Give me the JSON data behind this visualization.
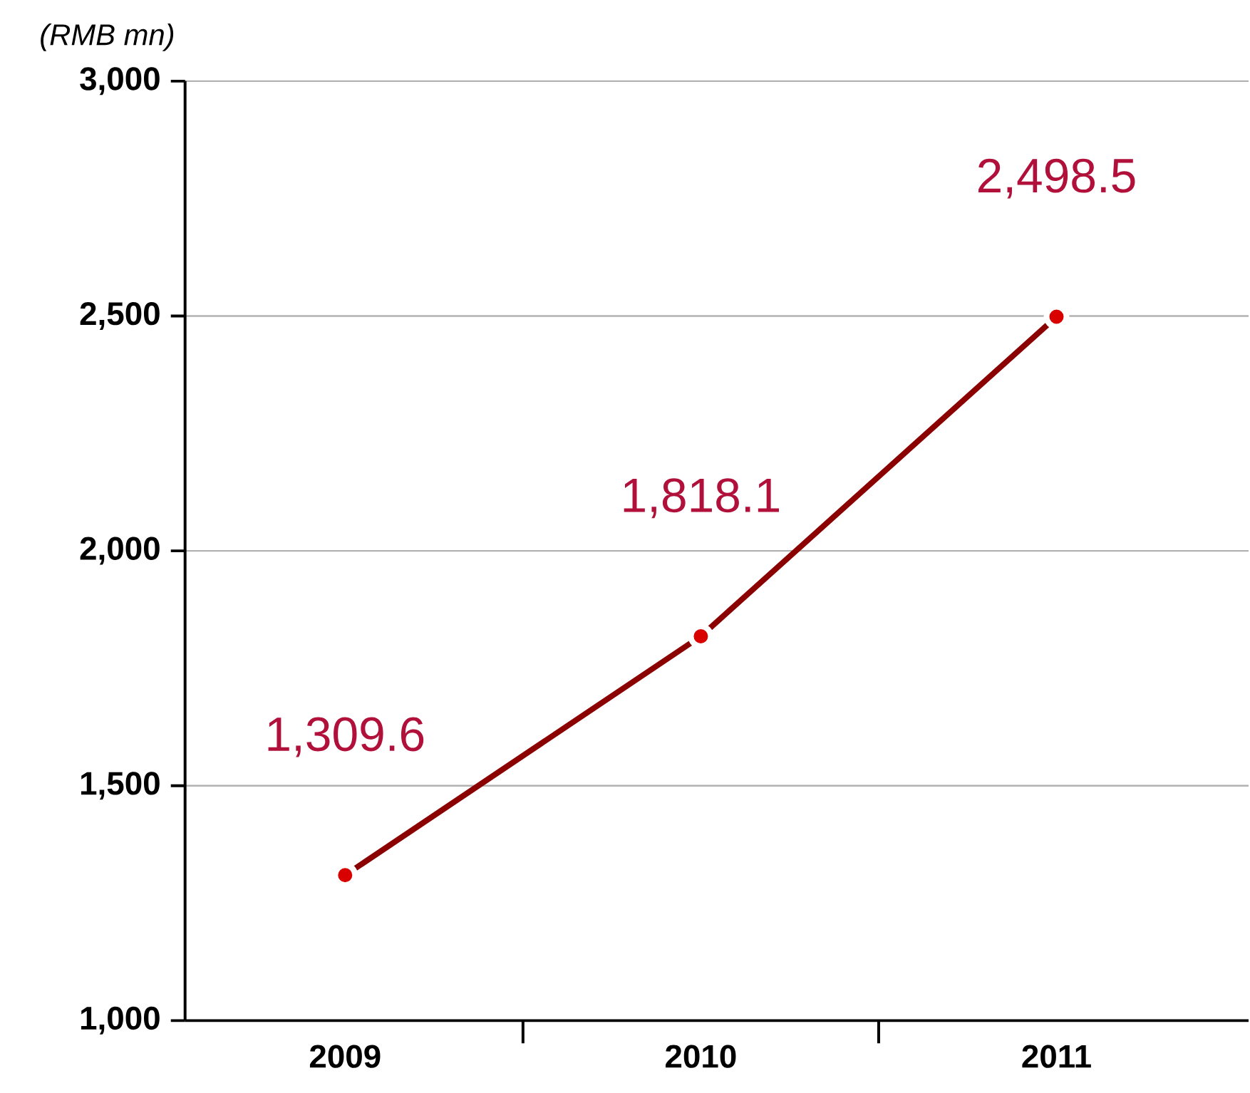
{
  "chart_data": {
    "type": "line",
    "ylabel": "*(RMB mn)*",
    "categories": [
      "2009",
      "2010",
      "2011"
    ],
    "series": [
      {
        "color": "#8b0000",
        "values": [
          1309.6,
          1818.1,
          2498.5
        ],
        "value_labels": [
          "1,309.6",
          "1,818.1",
          "2,498.5"
        ]
      }
    ],
    "ylim": [
      1000,
      3000
    ],
    "yticks": [
      {
        "value": 1000,
        "label": "1,000"
      },
      {
        "value": 1500,
        "label": "1,500"
      },
      {
        "value": 2000,
        "label": "2,000"
      },
      {
        "value": 2500,
        "label": "2,500"
      },
      {
        "value": 3000,
        "label": "3,000"
      }
    ],
    "grid": "y",
    "marker": "circle",
    "line_style": "solid"
  }
}
